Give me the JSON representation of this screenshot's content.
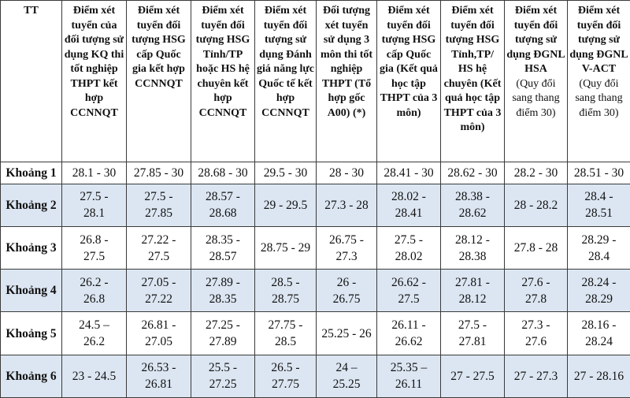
{
  "table": {
    "headers": [
      "TT",
      "Điểm xét tuyển của đối tượng sử dụng KQ thi tốt nghiệp THPT kết hợp CCNNQT",
      "Điểm xét tuyển đối tượng HSG cấp Quốc gia kết hợp CCNNQT",
      "Điểm xét tuyển đối tượng HSG Tỉnh/TP hoặc HS hệ chuyên kết hợp CCNNQT",
      "Điểm xét tuyển đối tượng sử dụng Đánh giá năng lực Quốc tế kết hợp CCNNQT",
      "Đối tượng xét tuyển sử dụng 3 môn thi tốt nghiệp THPT (Tổ hợp gốc A00) (*)",
      "Điểm xét tuyển đối tượng HSG cấp Quốc gia (Kết quả học tập THPT của 3 môn)",
      "Điểm xét tuyển đối tượng HSG Tỉnh,TP/ HS hệ chuyên (Kết quả học tập THPT của 3 môn)",
      "Điểm xét tuyển đối tượng sử dụng ĐGNL HSA",
      "Điểm xét tuyển đối tượng sử dụng ĐGNL V-ACT"
    ],
    "header_notes": {
      "8": "(Quy đổi sang thang điểm 30)",
      "9": "(Quy đổi sang thang điểm 30)"
    },
    "rows": [
      [
        "Khoảng 1",
        "28.1 - 30",
        "27.85 - 30",
        "28.68 - 30",
        "29.5 - 30",
        "28 - 30",
        "28.41 - 30",
        "28.62 - 30",
        "28.2 - 30",
        "28.51 - 30"
      ],
      [
        "Khoảng 2",
        "27.5 -\n28.1",
        "27.5 -\n27.85",
        "28.57 -\n28.68",
        "29 - 29.5",
        "27.3 - 28",
        "28.02 -\n28.41",
        "28.38 -\n28.62",
        "28 - 28.2",
        "28.4 -\n28.51"
      ],
      [
        "Khoảng 3",
        "26.8 -\n27.5",
        "27.22 -\n27.5",
        "28.35 -\n28.57",
        "28.75 - 29",
        "26.75 -\n27.3",
        "27.5 -\n28.02",
        "28.12 -\n28.38",
        "27.8 - 28",
        "28.29 -\n28.4"
      ],
      [
        "Khoảng 4",
        "26.2 -\n26.8",
        "27.05 -\n27.22",
        "27.89 -\n28.35",
        "28.5 -\n28.75",
        "26 -\n26.75",
        "26.62 -\n27.5",
        "27.81 -\n28.12",
        "27.6 -\n27.8",
        "28.24 -\n28.29"
      ],
      [
        "Khoảng 5",
        "24.5 –\n26.2",
        "26.81 -\n27.05",
        "27.25 -\n27.89",
        "27.75 -\n28.5",
        "25.25 - 26",
        "26.11 -\n26.62",
        "27.5 -\n27.81",
        "27.3 -\n27.6",
        "28.16 -\n28.24"
      ],
      [
        "Khoảng 6",
        "23 - 24.5",
        "26.53 -\n26.81",
        "25.5 -\n27.25",
        "26.5 -\n27.75",
        "24 –\n25.25",
        "25.35 –\n26.11",
        "27 - 27.5",
        "27 - 27.3",
        "27 - 28.16"
      ]
    ]
  }
}
